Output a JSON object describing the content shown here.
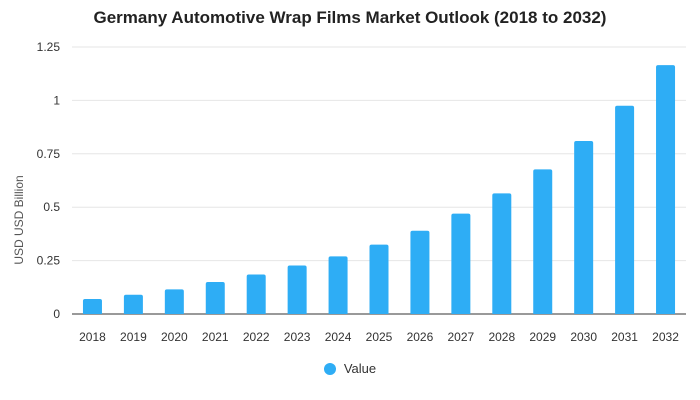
{
  "chart_data": {
    "type": "bar",
    "title": "Germany Automotive Wrap Films Market Outlook (2018 to 2032)",
    "xlabel": "",
    "ylabel": "USD USD Billion",
    "categories": [
      "2018",
      "2019",
      "2020",
      "2021",
      "2022",
      "2023",
      "2024",
      "2025",
      "2026",
      "2027",
      "2028",
      "2029",
      "2030",
      "2031",
      "2032"
    ],
    "series": [
      {
        "name": "Value",
        "values": [
          0.07,
          0.09,
          0.115,
          0.15,
          0.185,
          0.227,
          0.27,
          0.325,
          0.39,
          0.47,
          0.565,
          0.677,
          0.81,
          0.975,
          1.165
        ]
      }
    ],
    "ylim": [
      0,
      1.25
    ],
    "yticks": [
      0,
      0.25,
      0.5,
      0.75,
      1,
      1.25
    ],
    "ytick_labels": [
      "0",
      "0.25",
      "0.5",
      "0.75",
      "1",
      "1.25"
    ],
    "grid": true,
    "legend_position": "bottom",
    "bar_color": "#2eadf5",
    "grid_color": "#e6e6e6",
    "axis_color": "#333333"
  }
}
